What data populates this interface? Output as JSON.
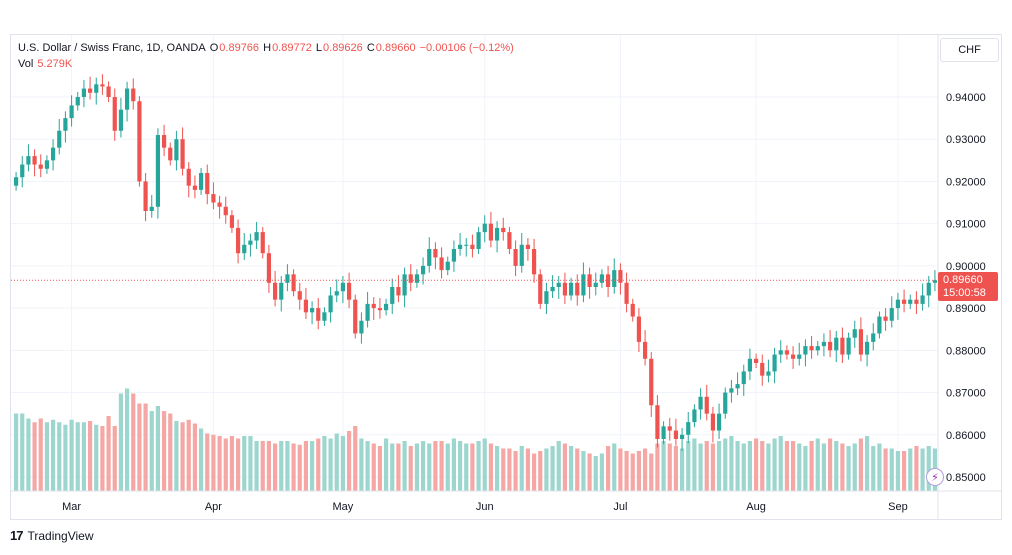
{
  "legend": {
    "symbol": "U.S. Dollar / Swiss Franc, 1D, OANDA",
    "o_label": "O",
    "o_value": "0.89766",
    "h_label": "H",
    "h_value": "0.89772",
    "l_label": "L",
    "l_value": "0.89626",
    "c_label": "C",
    "c_value": "0.89660",
    "change": "−0.00106 (−0.12%)",
    "vol_label": "Vol",
    "vol_value": "5.279K"
  },
  "currency_button": "CHF",
  "last_price": {
    "price": "0.89660",
    "countdown": "15:00:58"
  },
  "branding": {
    "logo_glyph": "17",
    "name": "TradingView"
  },
  "icons": {
    "goto": "lightning-icon"
  },
  "colors": {
    "up": "#26a69a",
    "down": "#ef5350",
    "up_vol": "#9cd6cf",
    "down_vol": "#f4a7a4",
    "grid": "#f0f3fa"
  },
  "chart_data": {
    "type": "candlestick",
    "title": "U.S. Dollar / Swiss Franc, 1D, OANDA",
    "ylim": [
      0.847,
      0.9437
    ],
    "y_ticks": [
      "0.94000",
      "0.93000",
      "0.92000",
      "0.91000",
      "0.90000",
      "0.89000",
      "0.88000",
      "0.87000",
      "0.86000",
      "0.85000"
    ],
    "x_ticks": [
      {
        "label": "Mar",
        "index": 9
      },
      {
        "label": "Apr",
        "index": 32
      },
      {
        "label": "May",
        "index": 53
      },
      {
        "label": "Jun",
        "index": 76
      },
      {
        "label": "Jul",
        "index": 98
      },
      {
        "label": "Aug",
        "index": 120
      },
      {
        "label": "Sep",
        "index": 143
      }
    ],
    "grid": true,
    "current_price_line": 0.8966,
    "closes": [
      0.921,
      0.924,
      0.926,
      0.924,
      0.923,
      0.925,
      0.928,
      0.932,
      0.935,
      0.938,
      0.94,
      0.942,
      0.941,
      0.943,
      0.9425,
      0.94,
      0.932,
      0.937,
      0.942,
      0.939,
      0.92,
      0.913,
      0.914,
      0.931,
      0.928,
      0.925,
      0.93,
      0.923,
      0.919,
      0.918,
      0.922,
      0.917,
      0.915,
      0.914,
      0.912,
      0.909,
      0.903,
      0.905,
      0.906,
      0.908,
      0.903,
      0.896,
      0.892,
      0.896,
      0.898,
      0.894,
      0.892,
      0.889,
      0.89,
      0.887,
      0.889,
      0.893,
      0.894,
      0.896,
      0.892,
      0.884,
      0.887,
      0.891,
      0.89,
      0.8895,
      0.891,
      0.895,
      0.893,
      0.898,
      0.896,
      0.898,
      0.9,
      0.904,
      0.902,
      0.899,
      0.901,
      0.904,
      0.905,
      0.905,
      0.904,
      0.908,
      0.91,
      0.906,
      0.909,
      0.908,
      0.904,
      0.9,
      0.905,
      0.904,
      0.898,
      0.891,
      0.894,
      0.895,
      0.896,
      0.893,
      0.896,
      0.893,
      0.898,
      0.895,
      0.896,
      0.898,
      0.895,
      0.899,
      0.896,
      0.891,
      0.888,
      0.882,
      0.878,
      0.867,
      0.859,
      0.862,
      0.861,
      0.859,
      0.86,
      0.863,
      0.866,
      0.869,
      0.865,
      0.861,
      0.865,
      0.87,
      0.871,
      0.872,
      0.875,
      0.878,
      0.877,
      0.874,
      0.875,
      0.879,
      0.88,
      0.879,
      0.878,
      0.879,
      0.881,
      0.88,
      0.881,
      0.882,
      0.88,
      0.883,
      0.879,
      0.883,
      0.885,
      0.879,
      0.882,
      0.884,
      0.888,
      0.887,
      0.89,
      0.892,
      0.891,
      0.892,
      0.891,
      0.893,
      0.896,
      0.8966
    ],
    "volume": [
      62,
      62,
      58,
      55,
      58,
      55,
      57,
      55,
      53,
      57,
      55,
      55,
      56,
      53,
      52,
      60,
      52,
      78,
      82,
      78,
      70,
      70,
      64,
      68,
      64,
      62,
      56,
      55,
      57,
      54,
      50,
      46,
      45,
      44,
      42,
      44,
      42,
      44,
      44,
      40,
      40,
      40,
      38,
      40,
      40,
      38,
      37,
      40,
      40,
      42,
      44,
      42,
      46,
      44,
      48,
      52,
      42,
      40,
      38,
      36,
      42,
      38,
      38,
      40,
      36,
      38,
      40,
      38,
      40,
      40,
      38,
      42,
      40,
      38,
      38,
      40,
      42,
      38,
      36,
      34,
      34,
      32,
      36,
      34,
      30,
      32,
      34,
      36,
      40,
      38,
      36,
      34,
      32,
      30,
      28,
      30,
      36,
      38,
      34,
      32,
      30,
      32,
      34,
      30,
      38,
      40,
      38,
      36,
      34,
      40,
      42,
      38,
      40,
      38,
      40,
      42,
      44,
      40,
      38,
      40,
      42,
      40,
      38,
      42,
      44,
      40,
      40,
      38,
      36,
      40,
      42,
      38,
      42,
      40,
      38,
      36,
      38,
      42,
      44,
      36,
      38,
      34,
      34,
      32,
      32,
      34,
      36,
      34,
      36,
      34,
      35
    ]
  }
}
